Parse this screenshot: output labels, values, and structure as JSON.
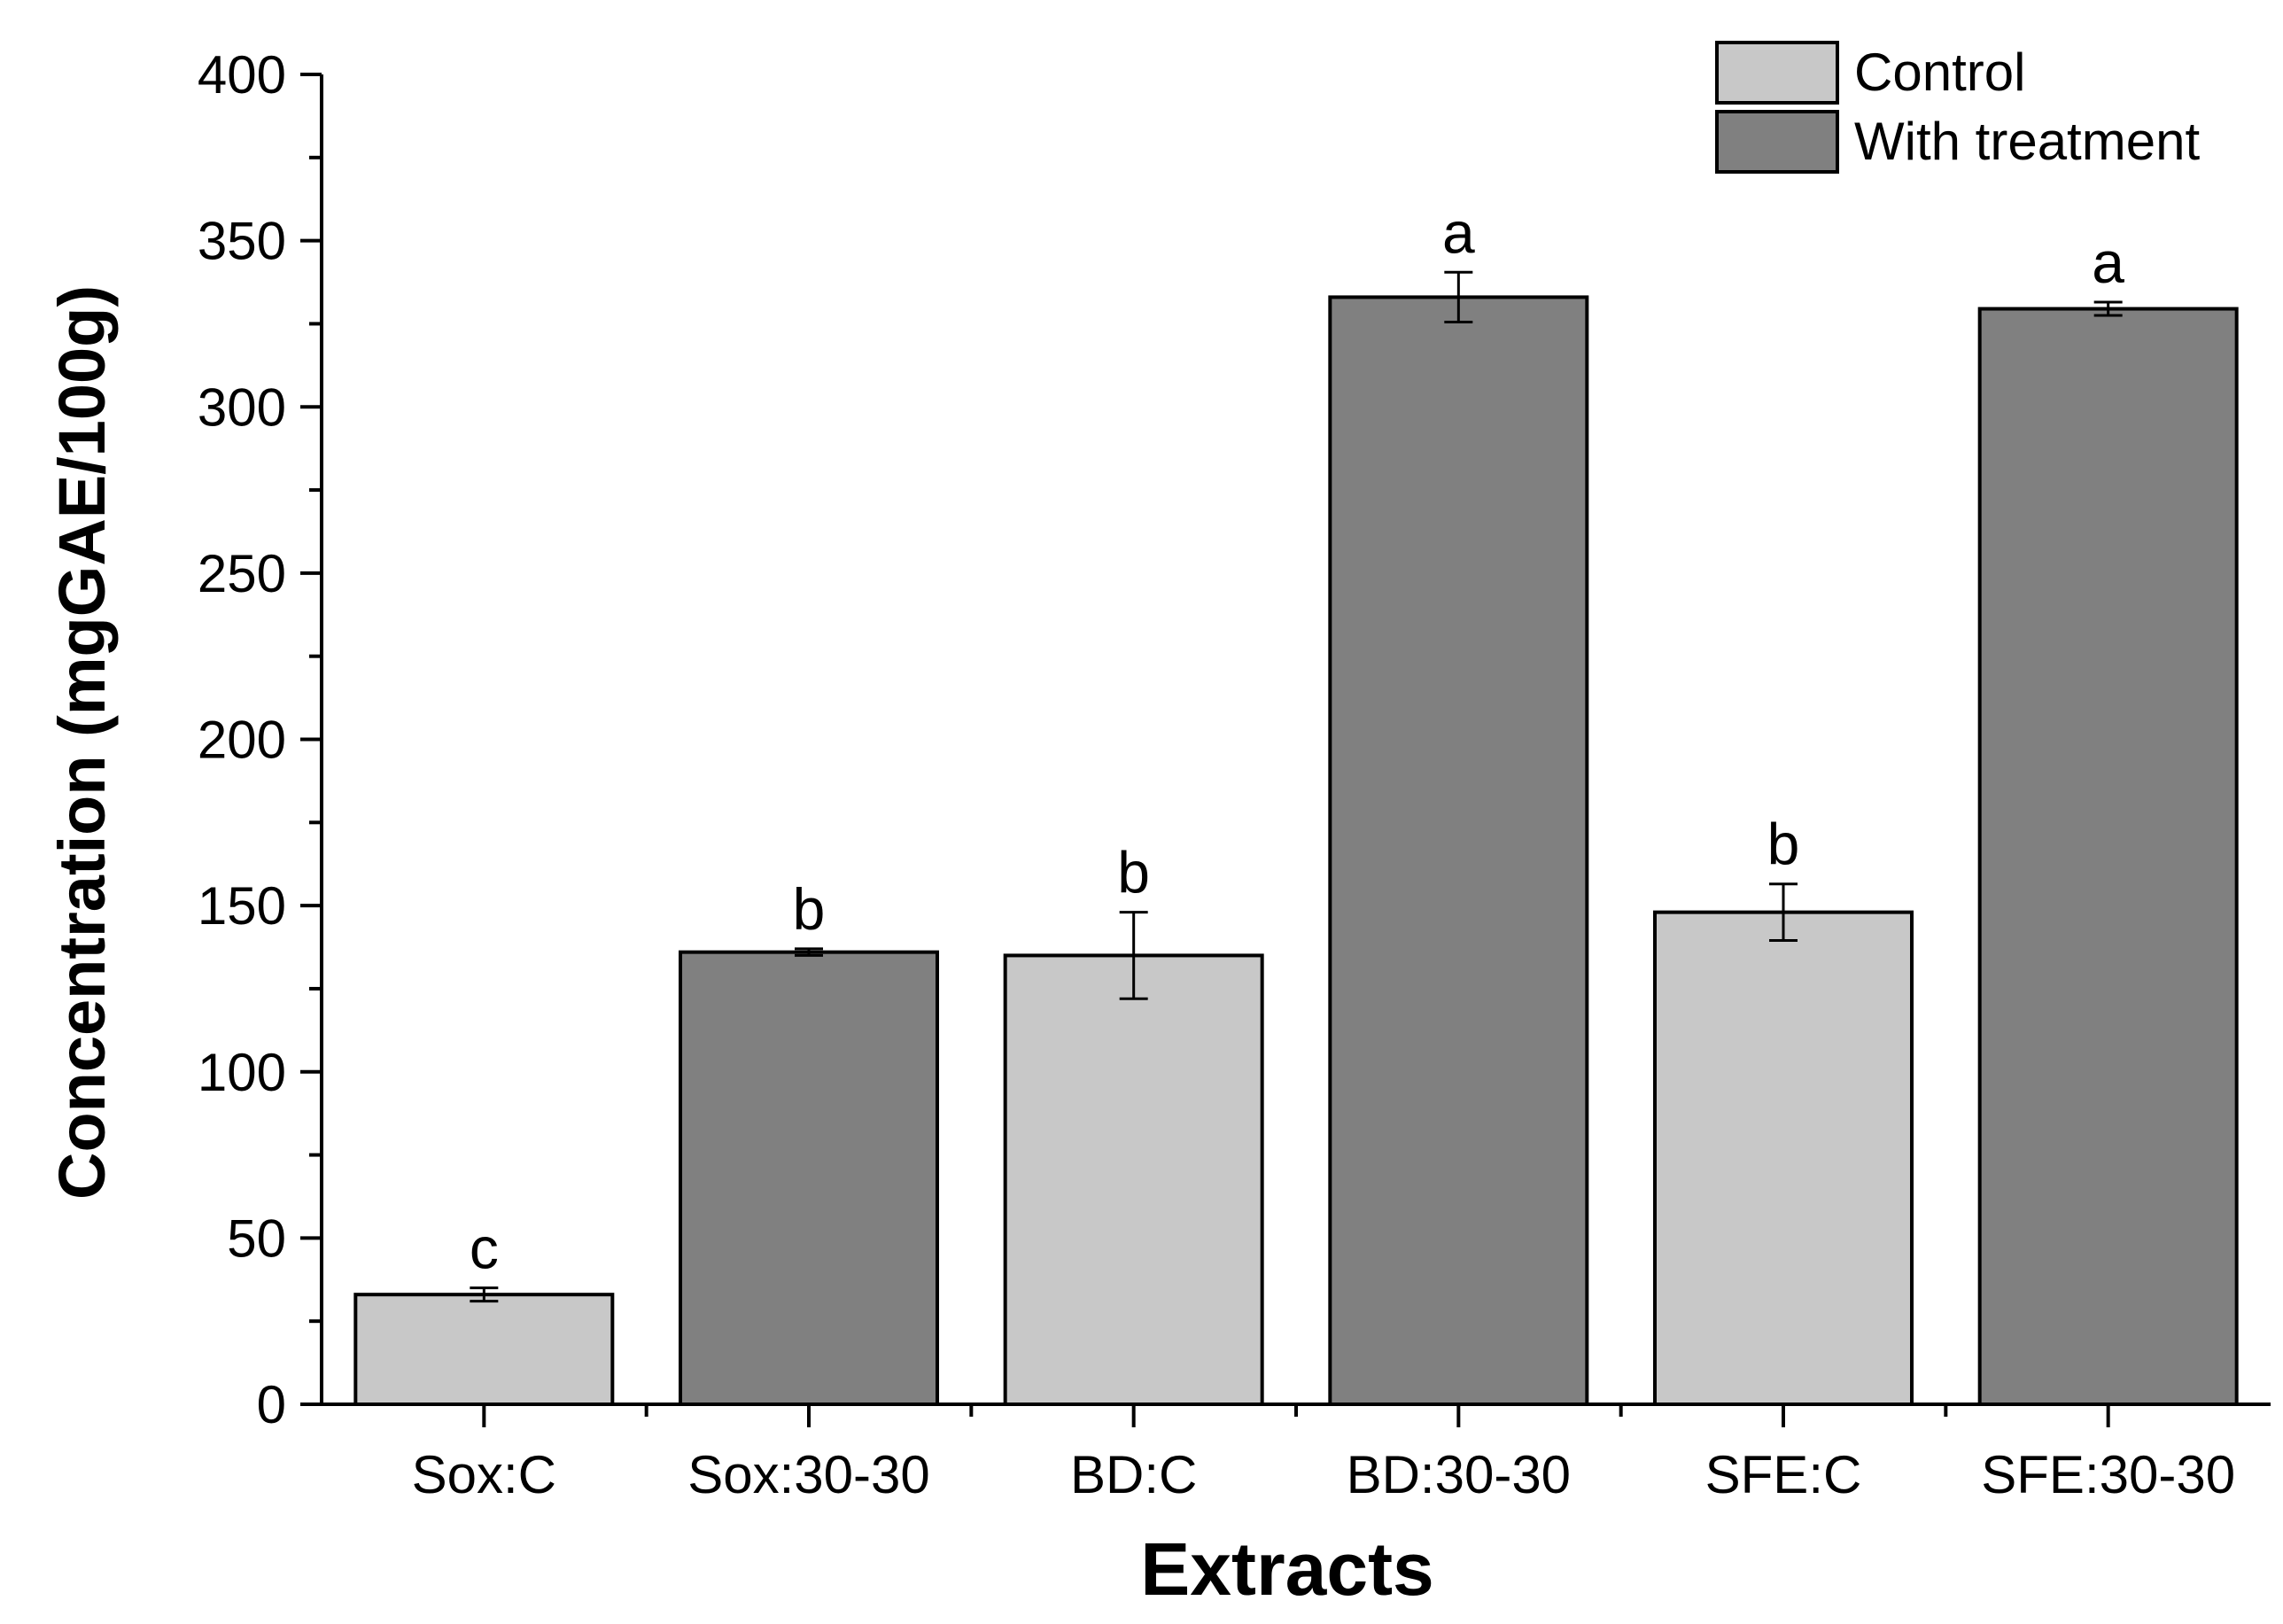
{
  "chart_data": {
    "type": "bar",
    "title": "",
    "xlabel": "Extracts",
    "ylabel": "Concentration (mgGAE/100g)",
    "ylim": [
      0,
      400
    ],
    "yticks": [
      0,
      50,
      100,
      150,
      200,
      250,
      300,
      350,
      400
    ],
    "categories": [
      "Sox:C",
      "Sox:30-30",
      "BD:C",
      "BD:30-30",
      "SFE:C",
      "SFE:30-30"
    ],
    "values": [
      33,
      136,
      135,
      333,
      148,
      329.5
    ],
    "errors": [
      2,
      1,
      13,
      7.5,
      8.5,
      2
    ],
    "groups": [
      "Control",
      "With treatment",
      "Control",
      "With treatment",
      "Control",
      "With treatment"
    ],
    "significance_letters": [
      "c",
      "b",
      "b",
      "a",
      "b",
      "a"
    ],
    "legend": {
      "position": "top-right",
      "entries": [
        {
          "label": "Control",
          "color": "#c8c8c8"
        },
        {
          "label": "With treatment",
          "color": "#808080"
        }
      ]
    },
    "grid": false
  }
}
